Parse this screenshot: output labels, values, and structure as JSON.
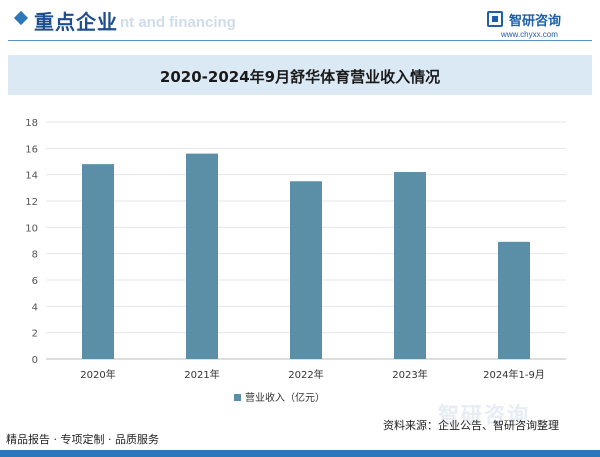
{
  "header": {
    "title": "重点企业",
    "ghost_text": "nt and financing"
  },
  "logo": {
    "name": "智研咨询",
    "url": "www.chyxx.com"
  },
  "footer": {
    "tagline": "精品报告 · 专项定制 · 品质服务",
    "source": "资料来源：企业公告、智研咨询整理",
    "watermark": "智研咨询"
  },
  "colors": {
    "bar": "#5b8fa8",
    "accent": "#2f76b8",
    "title_band": "#dbe9f5"
  },
  "chart_data": {
    "type": "bar",
    "title": "2020-2024年9月舒华体育营业收入情况",
    "categories": [
      "2020年",
      "2021年",
      "2022年",
      "2023年",
      "2024年1-9月"
    ],
    "series": [
      {
        "name": "营业收入（亿元）",
        "values": [
          14.8,
          15.6,
          13.5,
          14.2,
          8.9
        ]
      }
    ],
    "ylim": [
      0,
      18
    ],
    "yticks": [
      0,
      2,
      4,
      6,
      8,
      10,
      12,
      14,
      16,
      18
    ],
    "grid": true,
    "legend_position": "bottom"
  }
}
